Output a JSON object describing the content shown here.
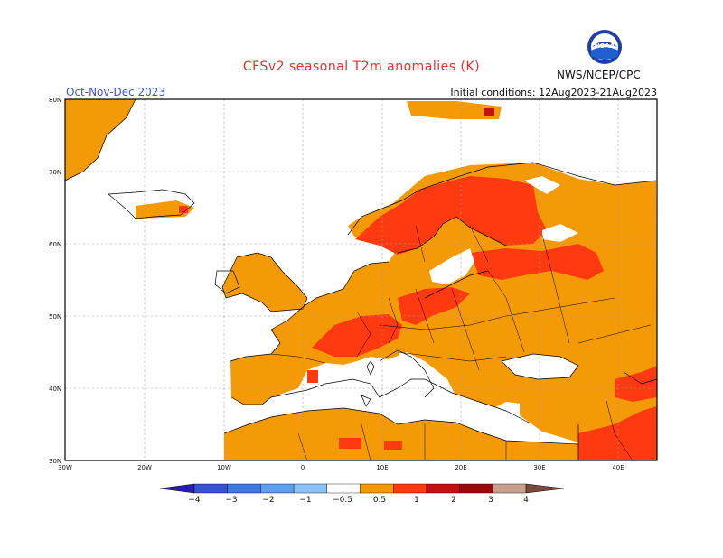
{
  "header": {
    "title": "CFSv2 seasonal T2m anomalies (K)",
    "period": "Oct-Nov-Dec 2023",
    "initial_conditions": "Initial conditions: 12Aug2023-21Aug2023",
    "agency": "NWS/NCEP/CPC",
    "logo_text": "NOAA"
  },
  "map": {
    "lat_labels": [
      "80N",
      "70N",
      "60N",
      "50N",
      "40N",
      "30N"
    ],
    "lon_labels": [
      "30W",
      "20W",
      "10W",
      "0",
      "10E",
      "20E",
      "30E",
      "40E"
    ]
  },
  "colorbar": {
    "labels": [
      "−4",
      "−3",
      "−2",
      "−1",
      "−0.5",
      "0.5",
      "1",
      "2",
      "3",
      "4"
    ],
    "colors": [
      "#2a1cb0",
      "#3852d4",
      "#3c78e0",
      "#5ea0ee",
      "#8ac2f7",
      "#ffffff",
      "#f59a07",
      "#ff3a10",
      "#c41010",
      "#9a0a0a",
      "#c9a090",
      "#7a4c40"
    ]
  },
  "colors": {
    "anom_0_5_to_1": "#f59a07",
    "anom_1_to_2": "#ff3a10",
    "anom_2_to_3": "#c41010",
    "coast": "#000000",
    "grid": "#9a9a9a"
  }
}
